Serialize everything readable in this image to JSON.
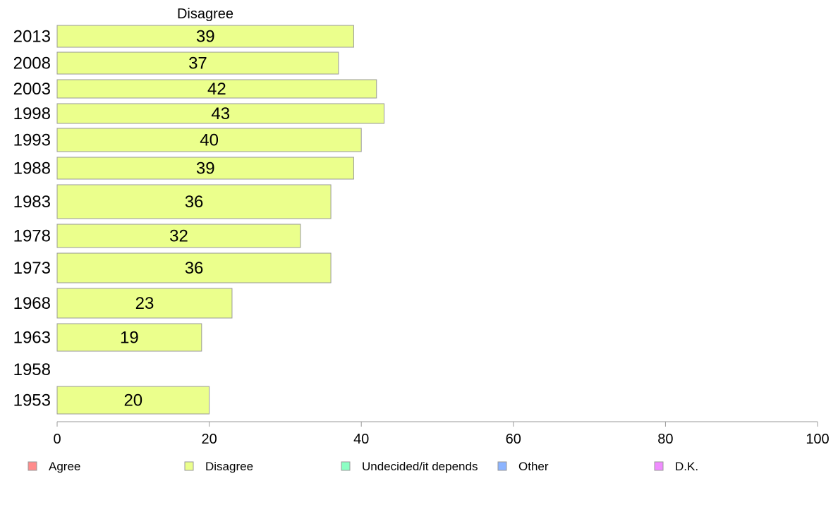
{
  "chart_data": {
    "type": "bar",
    "orientation": "horizontal",
    "series_title": "Disagree",
    "categories": [
      "2013",
      "2008",
      "2003",
      "1998",
      "1993",
      "1988",
      "1983",
      "1978",
      "1973",
      "1968",
      "1963",
      "1958",
      "1953"
    ],
    "series": [
      {
        "name": "Disagree",
        "color": "#ebff8c",
        "values": [
          39,
          37,
          42,
          43,
          40,
          39,
          36,
          32,
          36,
          23,
          19,
          null,
          20
        ]
      }
    ],
    "xlim": [
      0,
      100
    ],
    "xticks": [
      "0",
      "20",
      "40",
      "60",
      "80",
      "100"
    ],
    "grid": false,
    "legend_position": "bottom",
    "legend": [
      {
        "label": "Agree",
        "color": "#ff8c8c"
      },
      {
        "label": "Disagree",
        "color": "#ebff8c"
      },
      {
        "label": "Undecided/it depends",
        "color": "#8cffc4"
      },
      {
        "label": "Other",
        "color": "#8cb4ff"
      },
      {
        "label": "D.K.",
        "color": "#f08cff"
      }
    ]
  }
}
